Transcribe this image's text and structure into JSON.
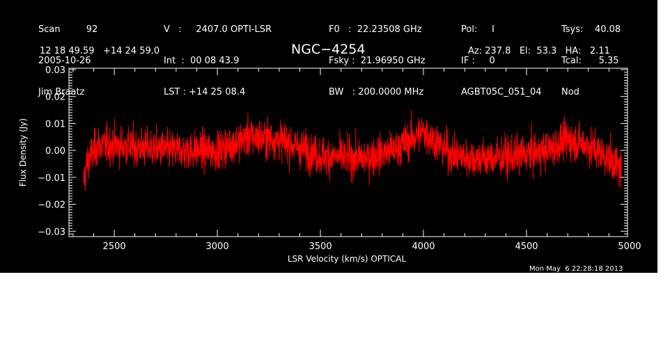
{
  "header": {
    "col1": [
      "Scan         92",
      "2005-10-26",
      "Jim Braatz"
    ],
    "col2": [
      "V   :     2407.0 OPTI-LSR",
      "Int  :  00 08 43.9",
      "LST : +14 25 08.4"
    ],
    "col3": [
      "F0   :  22.23508 GHz",
      "Fsky :  21.96950 GHz",
      "BW   : 200.0000 MHz"
    ],
    "col4": [
      "Pol:     I",
      "IF :     0",
      "AGBT05C_051_04"
    ],
    "col5": [
      "Tsys:    40.08",
      "Tcal:      5.35",
      "Nod"
    ],
    "coords": "12 18 49.59   +14 24 59.0",
    "azel": "Az: 237.8   El:  53.3   HA:   2.11"
  },
  "timestamp": "Mon May  6 22:28:18 2013",
  "chart_data": {
    "type": "line",
    "title": "NGC−4254",
    "xlabel": "LSR Velocity (km/s) OPTICAL",
    "ylabel": "Flux Density (Jy)",
    "xlim": [
      2280,
      4990
    ],
    "ylim": [
      -0.032,
      0.0305
    ],
    "x_ticks": [
      2500,
      3000,
      3500,
      4000,
      4500,
      5000
    ],
    "y_ticks": [
      -0.03,
      -0.02,
      -0.01,
      0.0,
      0.01,
      0.02,
      0.03
    ],
    "x_tick_labels": [
      "2500",
      "3000",
      "3500",
      "4000",
      "4500",
      "5000"
    ],
    "y_tick_labels": [
      "−0.03",
      "−0.02",
      "−0.01",
      "0.00",
      "0.01",
      "0.02",
      "0.03"
    ],
    "grid": false,
    "series": [
      {
        "color": "#ff0000",
        "x_start": 2350,
        "x_end": 4960,
        "points": 2600,
        "rms": 0.006,
        "baseline_knots": [
          [
            2350,
            -0.012
          ],
          [
            2370,
            -0.004
          ],
          [
            2420,
            0.002
          ],
          [
            2500,
            0.002
          ],
          [
            2650,
            0.001
          ],
          [
            2800,
            0.0
          ],
          [
            3000,
            0.0
          ],
          [
            3150,
            0.005
          ],
          [
            3300,
            0.004
          ],
          [
            3500,
            -0.002
          ],
          [
            3700,
            -0.003
          ],
          [
            3850,
            0.0
          ],
          [
            4000,
            0.007
          ],
          [
            4150,
            -0.002
          ],
          [
            4300,
            -0.003
          ],
          [
            4450,
            -0.002
          ],
          [
            4600,
            0.0
          ],
          [
            4700,
            0.004
          ],
          [
            4800,
            0.002
          ],
          [
            4900,
            -0.003
          ],
          [
            4960,
            -0.007
          ]
        ]
      }
    ]
  }
}
